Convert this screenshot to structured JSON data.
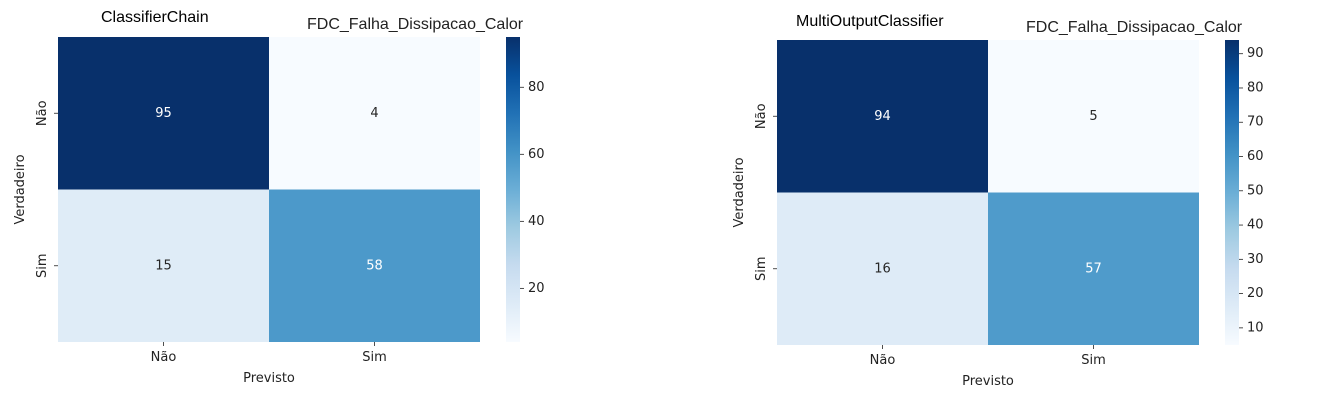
{
  "chart_data": [
    {
      "type": "heatmap",
      "title": "ClassifierChain",
      "subtitle": "FDC_Falha_Dissipacao_Calor",
      "xlabel": "Previsto",
      "ylabel": "Verdadeiro",
      "x_categories": [
        "Não",
        "Sim"
      ],
      "y_categories": [
        "Não",
        "Sim"
      ],
      "values": [
        [
          95,
          4
        ],
        [
          15,
          58
        ]
      ],
      "colormap": "Blues",
      "colorbar": {
        "min": 4,
        "max": 95,
        "ticks": [
          20,
          40,
          60,
          80
        ]
      }
    },
    {
      "type": "heatmap",
      "title": "MultiOutputClassifier",
      "subtitle": "FDC_Falha_Dissipacao_Calor",
      "xlabel": "Previsto",
      "ylabel": "Verdadeiro",
      "x_categories": [
        "Não",
        "Sim"
      ],
      "y_categories": [
        "Não",
        "Sim"
      ],
      "values": [
        [
          94,
          5
        ],
        [
          16,
          57
        ]
      ],
      "colormap": "Blues",
      "colorbar": {
        "min": 5,
        "max": 94,
        "ticks": [
          10,
          20,
          30,
          40,
          50,
          60,
          70,
          80,
          90
        ]
      }
    }
  ]
}
